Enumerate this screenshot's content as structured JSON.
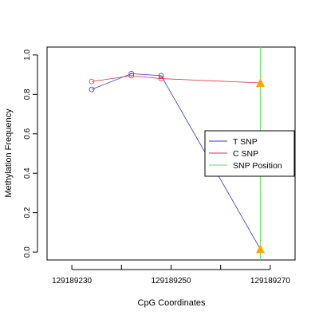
{
  "chart_data": {
    "type": "line",
    "title": "",
    "xlabel": "CpG Coordinates",
    "ylabel": "Methylation Frequency",
    "xlim": [
      129189225,
      129189275
    ],
    "ylim": [
      -0.04,
      1.04
    ],
    "x_ticks": [
      129189230,
      129189240,
      129189250,
      129189260,
      129189270
    ],
    "x_tick_labels": [
      "129189230",
      "",
      "129189250",
      "",
      "129189270"
    ],
    "y_ticks": [
      0.0,
      0.2,
      0.4,
      0.6,
      0.8,
      1.0
    ],
    "y_tick_labels": [
      "0.0",
      "0.2",
      "0.4",
      "0.6",
      "0.8",
      "1.0"
    ],
    "grid": false,
    "legend_position": "right",
    "series": [
      {
        "name": "T SNP",
        "color": "#3333cc",
        "x": [
          129189234,
          129189242,
          129189248,
          129189268
        ],
        "y": [
          0.825,
          0.905,
          0.895,
          0.015
        ]
      },
      {
        "name": "C SNP",
        "color": "#dd3344",
        "x": [
          129189234,
          129189242,
          129189248,
          129189268
        ],
        "y": [
          0.865,
          0.895,
          0.88,
          0.858
        ]
      }
    ],
    "snp_position": {
      "name": "SNP Position",
      "color": "#66dd66",
      "x": 129189268
    },
    "snp_marker_color": "#ffa500"
  }
}
